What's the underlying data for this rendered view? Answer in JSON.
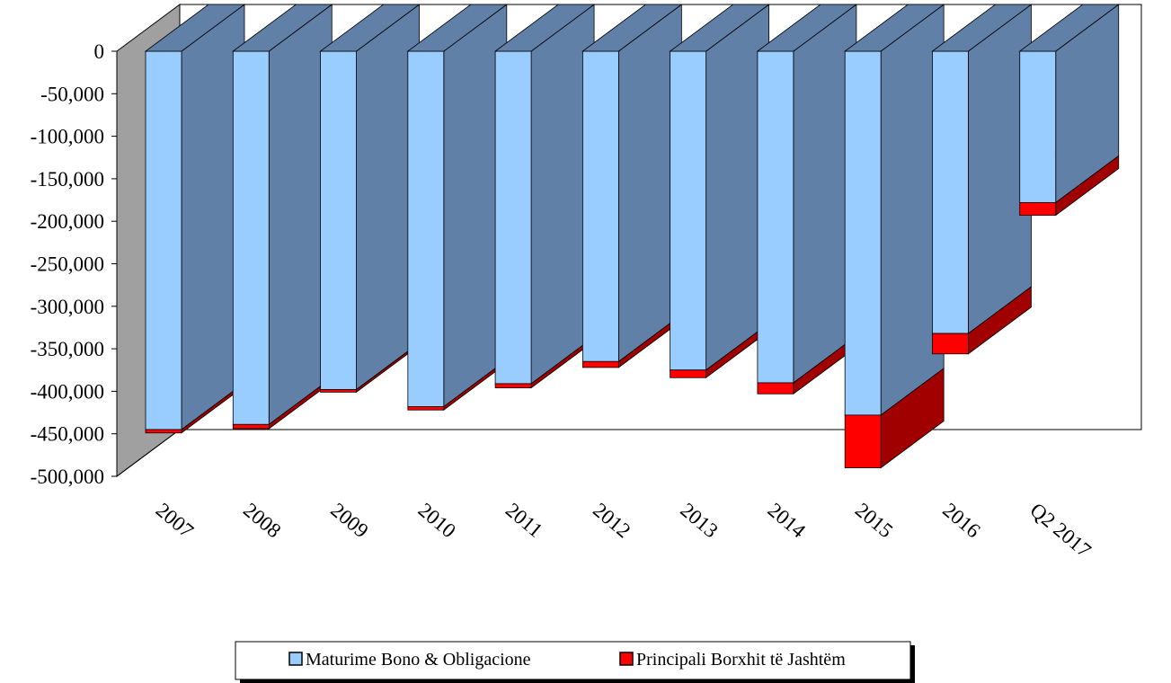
{
  "chart_data": {
    "type": "bar",
    "stacked": true,
    "three_d": true,
    "categories": [
      "2007",
      "2008",
      "2009",
      "2010",
      "2011",
      "2012",
      "2013",
      "2014",
      "2015",
      "2016",
      "Q2 2017"
    ],
    "series": [
      {
        "name": "Maturime Bono & Obligacione",
        "values": [
          -445000,
          -439000,
          -398000,
          -418000,
          -391000,
          -365000,
          -375000,
          -390000,
          -428000,
          -332000,
          -178000
        ],
        "color": "#99ccff",
        "side_color": "#6080a8"
      },
      {
        "name": "Principali Borxhit të Jashtëm",
        "values": [
          -4000,
          -5000,
          -3000,
          -4000,
          -5000,
          -7000,
          -9000,
          -13000,
          -62000,
          -24000,
          -15000
        ],
        "color": "#ff0000",
        "side_color": "#a00000"
      }
    ],
    "ylim": [
      -500000,
      0
    ],
    "yticks": [
      "0",
      "-50,000",
      "-100,000",
      "-150,000",
      "-200,000",
      "-250,000",
      "-300,000",
      "-350,000",
      "-400,000",
      "-450,000",
      "-500,000"
    ],
    "ytick_values": [
      0,
      -50000,
      -100000,
      -150000,
      -200000,
      -250000,
      -300000,
      -350000,
      -400000,
      -450000,
      -500000
    ],
    "grid": false,
    "legend_position": "bottom",
    "wall_color": "#a0a0a0"
  }
}
